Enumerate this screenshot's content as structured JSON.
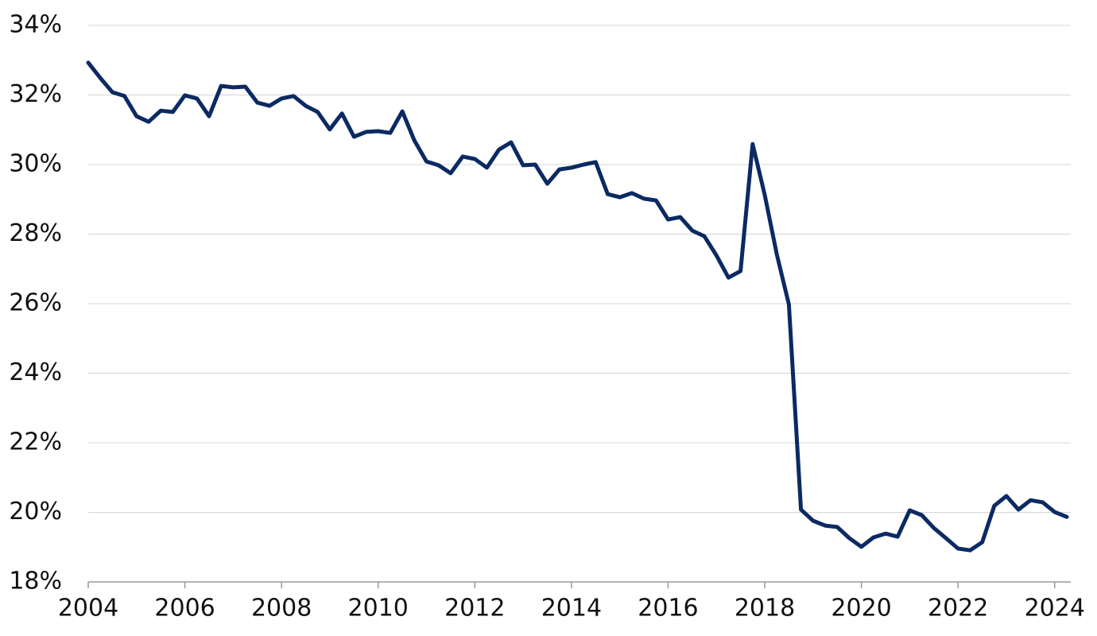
{
  "chart_data": {
    "type": "line",
    "x": [
      2004,
      2004.25,
      2004.5,
      2004.75,
      2005,
      2005.25,
      2005.5,
      2005.75,
      2006,
      2006.25,
      2006.5,
      2006.75,
      2007,
      2007.25,
      2007.5,
      2007.75,
      2008,
      2008.25,
      2008.5,
      2008.75,
      2009,
      2009.25,
      2009.5,
      2009.75,
      2010,
      2010.25,
      2010.5,
      2010.75,
      2011,
      2011.25,
      2011.5,
      2011.75,
      2012,
      2012.25,
      2012.5,
      2012.75,
      2013,
      2013.25,
      2013.5,
      2013.75,
      2014,
      2014.25,
      2014.5,
      2014.75,
      2015,
      2015.25,
      2015.5,
      2015.75,
      2016,
      2016.25,
      2016.5,
      2016.75,
      2017,
      2017.25,
      2017.5,
      2017.75,
      2018,
      2018.25,
      2018.5,
      2018.75,
      2019,
      2019.25,
      2019.5,
      2019.75,
      2020,
      2020.25,
      2020.5,
      2020.75,
      2021,
      2021.25,
      2021.5,
      2021.75,
      2022,
      2022.25,
      2022.5,
      2022.75,
      2023,
      2023.25,
      2023.5,
      2023.75,
      2024,
      2024.25
    ],
    "series": [
      {
        "color": "#0b2a63",
        "values": [
          32.93,
          32.49,
          32.08,
          31.97,
          31.39,
          31.23,
          31.55,
          31.51,
          31.99,
          31.9,
          31.39,
          32.26,
          32.22,
          32.24,
          31.78,
          31.69,
          31.9,
          31.97,
          31.69,
          31.51,
          31.01,
          31.47,
          30.8,
          30.94,
          30.96,
          30.91,
          31.53,
          30.69,
          30.09,
          29.98,
          29.75,
          30.23,
          30.16,
          29.91,
          30.43,
          30.64,
          29.98,
          30.0,
          29.45,
          29.86,
          29.91,
          30.0,
          30.07,
          29.15,
          29.06,
          29.18,
          29.02,
          28.97,
          28.42,
          28.49,
          28.1,
          27.94,
          27.39,
          26.75,
          26.94,
          30.59,
          29.13,
          27.42,
          25.98,
          20.08,
          19.76,
          19.62,
          19.58,
          19.26,
          19.01,
          19.28,
          19.39,
          19.3,
          20.06,
          19.92,
          19.55,
          19.26,
          18.96,
          18.91,
          19.14,
          20.19,
          20.47,
          20.08,
          20.35,
          20.29,
          20.01,
          19.87
        ]
      }
    ],
    "xlim": [
      2004,
      2024.3
    ],
    "xticks": [
      2004,
      2006,
      2008,
      2010,
      2012,
      2014,
      2016,
      2018,
      2020,
      2022,
      2024
    ],
    "ylim": [
      18,
      34
    ],
    "yticks": [
      {
        "value": 18,
        "label": "18%"
      },
      {
        "value": 20,
        "label": "20%"
      },
      {
        "value": 22,
        "label": "22%"
      },
      {
        "value": 24,
        "label": "24%"
      },
      {
        "value": 26,
        "label": "26%"
      },
      {
        "value": 28,
        "label": "28%"
      },
      {
        "value": 30,
        "label": "30%"
      },
      {
        "value": 32,
        "label": "32%"
      },
      {
        "value": 34,
        "label": "34%"
      }
    ],
    "grid": true
  }
}
